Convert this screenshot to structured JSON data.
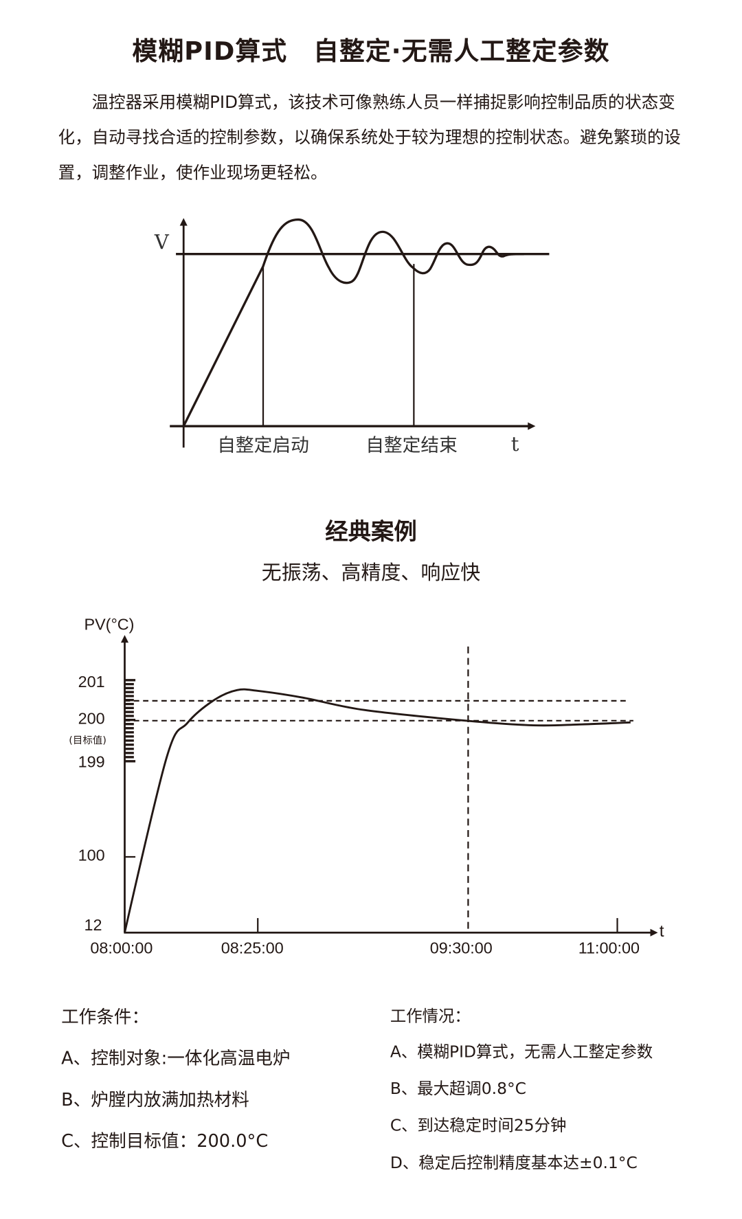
{
  "title": "模糊PID算式　自整定·无需人工整定参数",
  "intro": "温控器采用模糊PID算式，该技术可像熟练人员一样捕捉影响控制品质的状态变化，自动寻找合适的控制参数，以确保系统处于较为理想的控制状态。避免繁琐的设置，调整作业，使作业现场更轻松。",
  "autotune_diagram": {
    "y_label": "V",
    "x_label": "t",
    "start_label": "自整定启动",
    "end_label": "自整定结束"
  },
  "case": {
    "title": "经典案例",
    "subtitle": "无振荡、高精度、响应快"
  },
  "chart_data": {
    "type": "line",
    "ylabel": "PV(°C)",
    "xlabel": "t",
    "y_ticks": [
      "201",
      "200",
      "199",
      "100",
      "12"
    ],
    "y_tick_values": [
      201,
      200,
      199,
      100,
      12
    ],
    "target_note": "(目标值)",
    "x_ticks": [
      "08:00:00",
      "08:25:00",
      "09:30:00",
      "11:00:00"
    ],
    "x_tick_minutes": [
      0,
      25,
      90,
      180
    ],
    "reference_lines": [
      200.5,
      200
    ],
    "marker_time": "09:30:00",
    "series": [
      {
        "points_minutes_pv": [
          [
            0,
            12
          ],
          [
            7.9,
            199.1
          ],
          [
            11.8,
            199.93
          ],
          [
            16.8,
            200.5
          ],
          [
            21.1,
            200.75
          ],
          [
            25.1,
            200.73
          ],
          [
            39,
            200.56
          ],
          [
            57.9,
            200.25
          ],
          [
            89.6,
            199.98
          ],
          [
            129.3,
            199.87
          ],
          [
            157,
            199.89
          ],
          [
            188,
            199.94
          ]
        ]
      }
    ],
    "grid": false
  },
  "conditions": {
    "heading": "工作条件：",
    "items": [
      "A、控制对象:一体化高温电炉",
      "B、炉膛内放满加热材料",
      "C、控制目标值：200.0°C"
    ]
  },
  "results": {
    "heading": "工作情况：",
    "items": [
      "A、模糊PID算式，无需人工整定参数",
      "B、最大超调0.8°C",
      "C、到达稳定时间25分钟",
      "D、稳定后控制精度基本达±0.1°C"
    ]
  }
}
